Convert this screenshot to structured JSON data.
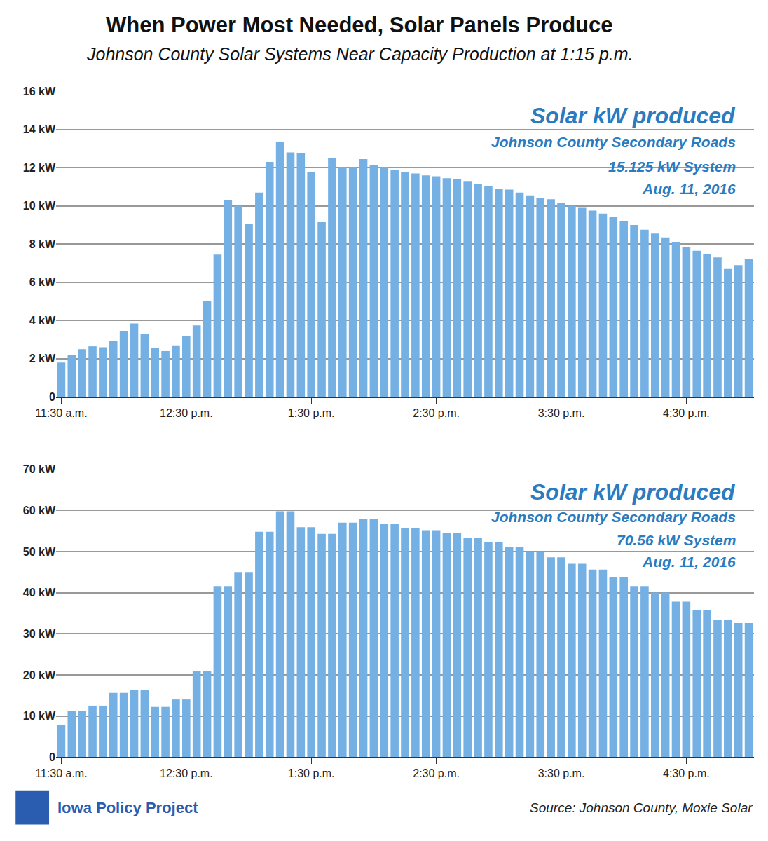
{
  "header": {
    "title": "When Power Most Needed, Solar Panels Produce",
    "subtitle": "Johnson County Solar Systems Near Capacity Production at 1:15 p.m."
  },
  "footer": {
    "organization": "Iowa Policy Project",
    "source": "Source: Johnson County, Moxie Solar"
  },
  "chart_data": [
    {
      "type": "bar",
      "annotations": [
        "Solar kW produced",
        "Johnson County Secondary Roads",
        "15.125 kW System",
        "Aug. 11, 2016"
      ],
      "categories": [
        "11:30 a.m.",
        null,
        null,
        null,
        null,
        null,
        null,
        null,
        null,
        null,
        null,
        null,
        "12:30 p.m.",
        null,
        null,
        null,
        null,
        null,
        null,
        null,
        null,
        null,
        null,
        null,
        "1:30 p.m.",
        null,
        null,
        null,
        null,
        null,
        null,
        null,
        null,
        null,
        null,
        null,
        "2:30 p.m.",
        null,
        null,
        null,
        null,
        null,
        null,
        null,
        null,
        null,
        null,
        null,
        "3:30 p.m.",
        null,
        null,
        null,
        null,
        null,
        null,
        null,
        null,
        null,
        null,
        null,
        "4:30 p.m.",
        null,
        null,
        null,
        null,
        null,
        null
      ],
      "values": [
        1.8,
        2.2,
        2.5,
        2.65,
        2.6,
        2.95,
        3.45,
        3.85,
        3.3,
        2.55,
        2.4,
        2.7,
        3.2,
        3.75,
        5.0,
        7.45,
        10.3,
        10.0,
        9.05,
        10.7,
        12.3,
        13.35,
        12.8,
        12.75,
        11.75,
        9.15,
        12.5,
        12.05,
        12.05,
        12.45,
        12.15,
        12.05,
        11.9,
        11.75,
        11.7,
        11.6,
        11.55,
        11.45,
        11.4,
        11.3,
        11.15,
        11.05,
        10.9,
        10.85,
        10.7,
        10.55,
        10.4,
        10.35,
        10.15,
        10.0,
        9.9,
        9.75,
        9.6,
        9.4,
        9.2,
        9.0,
        8.75,
        8.55,
        8.35,
        8.1,
        7.85,
        7.65,
        7.5,
        7.3,
        6.7,
        6.9,
        7.2
      ],
      "color": "#74b0e4",
      "ylim": [
        0,
        16
      ],
      "yticks": [
        {
          "value": 0,
          "label": "0"
        },
        {
          "value": 2,
          "label": "2 kW"
        },
        {
          "value": 4,
          "label": "4 kW"
        },
        {
          "value": 6,
          "label": "6 kW"
        },
        {
          "value": 8,
          "label": "8 kW"
        },
        {
          "value": 10,
          "label": "10 kW"
        },
        {
          "value": 12,
          "label": "12 kW"
        },
        {
          "value": 14,
          "label": "14 kW"
        },
        {
          "value": 16,
          "label": "16 kW"
        }
      ],
      "grid": true
    },
    {
      "type": "bar",
      "annotations": [
        "Solar kW produced",
        "Johnson County Secondary Roads",
        "70.56 kW System",
        "Aug. 11, 2016"
      ],
      "categories": [
        "11:30 a.m.",
        null,
        null,
        null,
        null,
        null,
        null,
        null,
        null,
        null,
        null,
        null,
        "12:30 p.m.",
        null,
        null,
        null,
        null,
        null,
        null,
        null,
        null,
        null,
        null,
        null,
        "1:30 p.m.",
        null,
        null,
        null,
        null,
        null,
        null,
        null,
        null,
        null,
        null,
        null,
        "2:30 p.m.",
        null,
        null,
        null,
        null,
        null,
        null,
        null,
        null,
        null,
        null,
        null,
        "3:30 p.m.",
        null,
        null,
        null,
        null,
        null,
        null,
        null,
        null,
        null,
        null,
        null,
        "4:30 p.m.",
        null,
        null,
        null,
        null,
        null,
        null
      ],
      "values": [
        7.8,
        11.2,
        11.2,
        12.5,
        12.5,
        15.6,
        15.6,
        16.3,
        16.3,
        12.2,
        12.2,
        14.0,
        14.0,
        21.0,
        21.0,
        41.6,
        41.6,
        45.0,
        45.0,
        54.8,
        54.8,
        59.8,
        59.8,
        55.9,
        55.9,
        54.3,
        54.3,
        57.0,
        57.0,
        58.0,
        58.0,
        56.8,
        56.8,
        55.6,
        55.6,
        55.2,
        55.2,
        54.4,
        54.4,
        53.4,
        53.4,
        52.3,
        52.3,
        51.2,
        51.2,
        49.9,
        49.9,
        48.6,
        48.6,
        47.0,
        47.0,
        45.6,
        45.6,
        43.7,
        43.7,
        41.6,
        41.6,
        40.0,
        40.0,
        37.8,
        37.8,
        35.8,
        35.8,
        33.3,
        33.3,
        32.6,
        32.6
      ],
      "color": "#74b0e4",
      "ylim": [
        0,
        70
      ],
      "yticks": [
        {
          "value": 0,
          "label": "0"
        },
        {
          "value": 10,
          "label": "10 kW"
        },
        {
          "value": 20,
          "label": "20 kW"
        },
        {
          "value": 30,
          "label": "30 kW"
        },
        {
          "value": 40,
          "label": "40 kW"
        },
        {
          "value": 50,
          "label": "50 kW"
        },
        {
          "value": 60,
          "label": "60 kW"
        },
        {
          "value": 70,
          "label": "70 kW"
        }
      ],
      "grid": true
    }
  ]
}
